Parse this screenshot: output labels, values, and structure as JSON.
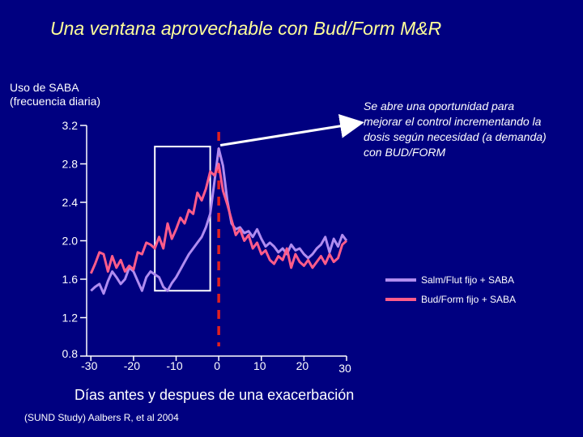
{
  "slide": {
    "title": "Una ventana aprovechable con Bud/Form M&R",
    "annotation": "Se abre una oportunidad para mejorar el control incrementando la dosis según necesidad (a demanda) con BUD/FORM",
    "source": "(SUND Study) Aalbers R, et al 2004"
  },
  "colors": {
    "background": "#000080",
    "title": "#ffff99",
    "salm_series": "#b08cf0",
    "bud_series": "#ff5c8a",
    "dashed_line": "#e02020",
    "axis": "#ffffff"
  },
  "chart_data": {
    "type": "line",
    "title": "",
    "ylabel_lines": [
      "Uso de SABA",
      "(frecuencia diaria)"
    ],
    "xlabel": "Días antes y despues de una exacerbación",
    "xlim": [
      -31,
      30
    ],
    "ylim": [
      0.8,
      3.2
    ],
    "x_ticks": [
      -30,
      -20,
      -10,
      0,
      10,
      20,
      30
    ],
    "x_tick_labels": [
      "-30",
      "-20",
      "-10",
      "0",
      "10",
      "20",
      "30"
    ],
    "y_ticks": [
      3.2,
      2.8,
      2.4,
      2.0,
      1.6,
      1.2,
      0.8
    ],
    "y_tick_labels": [
      "3.2",
      "2.8",
      "2.4",
      "2.0",
      "1.6",
      "1.2",
      "0.8"
    ],
    "legend_position": "right",
    "grid": false,
    "highlight_box": {
      "x": [
        -15,
        -2
      ],
      "y": [
        1.48,
        2.98
      ]
    },
    "vertical_marker_x": 0,
    "series": [
      {
        "name": "Salm/Flut  fijo + SABA",
        "x": [
          -30,
          -29,
          -28,
          -27,
          -26,
          -25,
          -24,
          -23,
          -22,
          -21,
          -20,
          -19,
          -18,
          -17,
          -16,
          -15,
          -14,
          -13,
          -12,
          -11,
          -10,
          -9,
          -8,
          -7,
          -6,
          -5,
          -4,
          -3,
          -2,
          -1,
          0,
          1,
          2,
          3,
          4,
          5,
          6,
          7,
          8,
          9,
          10,
          11,
          12,
          13,
          14,
          15,
          16,
          17,
          18,
          19,
          20,
          21,
          22,
          23,
          24,
          25,
          26,
          27,
          28,
          29,
          30
        ],
        "values": [
          1.48,
          1.52,
          1.55,
          1.45,
          1.58,
          1.68,
          1.62,
          1.55,
          1.6,
          1.72,
          1.68,
          1.58,
          1.48,
          1.62,
          1.68,
          1.65,
          1.62,
          1.52,
          1.48,
          1.56,
          1.62,
          1.7,
          1.78,
          1.86,
          1.92,
          1.98,
          2.04,
          2.14,
          2.28,
          2.62,
          2.96,
          2.78,
          2.42,
          2.18,
          2.12,
          2.14,
          2.08,
          2.1,
          2.04,
          2.12,
          2.02,
          1.94,
          1.98,
          1.94,
          1.88,
          1.92,
          1.86,
          1.96,
          1.9,
          1.92,
          1.86,
          1.82,
          1.86,
          1.92,
          1.96,
          2.04,
          1.88,
          2.02,
          1.94,
          2.06,
          2.0
        ]
      },
      {
        "name": "Bud/Form  fijo + SABA",
        "x": [
          -30,
          -29,
          -28,
          -27,
          -26,
          -25,
          -24,
          -23,
          -22,
          -21,
          -20,
          -19,
          -18,
          -17,
          -16,
          -15,
          -14,
          -13,
          -12,
          -11,
          -10,
          -9,
          -8,
          -7,
          -6,
          -5,
          -4,
          -3,
          -2,
          -1,
          0,
          1,
          2,
          3,
          4,
          5,
          6,
          7,
          8,
          9,
          10,
          11,
          12,
          13,
          14,
          15,
          16,
          17,
          18,
          19,
          20,
          21,
          22,
          23,
          24,
          25,
          26,
          27,
          28,
          29,
          30
        ],
        "values": [
          1.66,
          1.76,
          1.88,
          1.86,
          1.68,
          1.84,
          1.72,
          1.8,
          1.68,
          1.74,
          1.7,
          1.88,
          1.86,
          1.98,
          1.96,
          1.92,
          2.04,
          1.92,
          2.18,
          2.02,
          2.12,
          2.24,
          2.18,
          2.32,
          2.28,
          2.5,
          2.42,
          2.54,
          2.72,
          2.68,
          2.8,
          2.52,
          2.38,
          2.22,
          2.06,
          2.12,
          2.0,
          2.06,
          1.92,
          1.98,
          1.86,
          1.9,
          1.8,
          1.76,
          1.84,
          1.8,
          1.92,
          1.72,
          1.86,
          1.78,
          1.74,
          1.8,
          1.72,
          1.78,
          1.84,
          1.76,
          1.86,
          1.78,
          1.82,
          1.96,
          2.0
        ]
      }
    ]
  }
}
